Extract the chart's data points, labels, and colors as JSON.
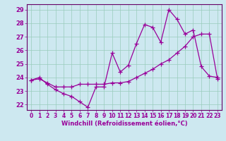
{
  "xlabel": "Windchill (Refroidissement éolien,°C)",
  "bg_color": "#cde8f0",
  "grid_color": "#99ccbb",
  "line_color": "#990099",
  "spine_color": "#660066",
  "xlim": [
    -0.5,
    23.5
  ],
  "ylim": [
    21.6,
    29.4
  ],
  "xticks": [
    0,
    1,
    2,
    3,
    4,
    5,
    6,
    7,
    8,
    9,
    10,
    11,
    12,
    13,
    14,
    15,
    16,
    17,
    18,
    19,
    20,
    21,
    22,
    23
  ],
  "yticks": [
    22,
    23,
    24,
    25,
    26,
    27,
    28,
    29
  ],
  "series1_x": [
    0,
    1,
    2,
    3,
    4,
    5,
    6,
    7,
    8,
    9,
    10,
    11,
    12,
    13,
    14,
    15,
    16,
    17,
    18,
    19,
    20,
    21,
    22,
    23
  ],
  "series1_y": [
    23.8,
    24.0,
    23.5,
    23.1,
    22.8,
    22.6,
    22.2,
    21.8,
    23.3,
    23.3,
    25.8,
    24.4,
    24.9,
    26.5,
    27.9,
    27.7,
    26.6,
    29.0,
    28.3,
    27.2,
    27.5,
    24.8,
    24.1,
    24.0
  ],
  "series2_x": [
    0,
    1,
    2,
    3,
    4,
    5,
    6,
    7,
    8,
    9,
    10,
    11,
    12,
    13,
    14,
    15,
    16,
    17,
    18,
    19,
    20,
    21,
    22,
    23
  ],
  "series2_y": [
    23.8,
    23.9,
    23.6,
    23.3,
    23.3,
    23.3,
    23.5,
    23.5,
    23.5,
    23.5,
    23.6,
    23.6,
    23.7,
    24.0,
    24.3,
    24.6,
    25.0,
    25.3,
    25.8,
    26.3,
    27.0,
    27.2,
    27.2,
    23.9
  ]
}
